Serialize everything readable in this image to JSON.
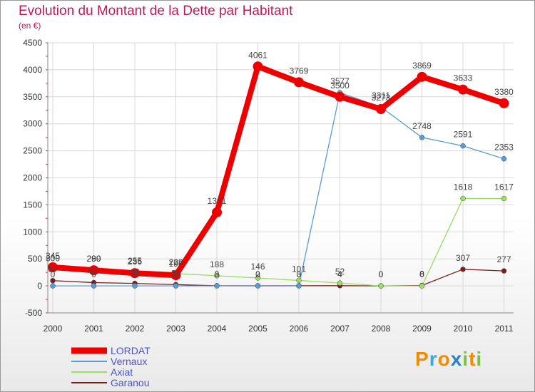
{
  "chart_data": {
    "type": "line",
    "title": "Evolution du Montant de la Dette par Habitant",
    "subtitle": "(en €)",
    "xlabel": "",
    "ylabel": "",
    "ylim": [
      -500,
      4500
    ],
    "y_ticks": [
      "-500",
      "0",
      "500",
      "1000",
      "1500",
      "2000",
      "2500",
      "3000",
      "3500",
      "4000",
      "4500"
    ],
    "categories": [
      "2000",
      "2001",
      "2002",
      "2003",
      "2004",
      "2005",
      "2006",
      "2007",
      "2008",
      "2009",
      "2010",
      "2011"
    ],
    "series": [
      {
        "name": "LORDAT",
        "color": "#ee0000",
        "values": [
          345,
          289,
          236,
          198,
          1361,
          4061,
          3769,
          3500,
          3273,
          3869,
          3633,
          3380
        ],
        "labels": [
          "345",
          "289",
          "236",
          "198",
          "1361",
          "4061",
          "3769",
          "3500",
          "3273",
          "3869",
          "3633",
          "3380"
        ]
      },
      {
        "name": "Vernaux",
        "color": "#5b9bd5",
        "values": [
          0,
          0,
          0,
          0,
          0,
          0,
          0,
          3577,
          3311,
          2748,
          2591,
          2353
        ],
        "labels": [
          "0",
          "0",
          "0",
          "0",
          "0",
          "0",
          "0",
          "3577",
          "3311",
          "2748",
          "2591",
          "2353"
        ]
      },
      {
        "name": "Axiat",
        "color": "#99dd66",
        "values": [
          300,
          290,
          255,
          228,
          188,
          146,
          101,
          52,
          0,
          0,
          1618,
          1617
        ],
        "labels": [
          "300",
          "290",
          "255",
          "228",
          "188",
          "146",
          "101",
          "52",
          "0",
          "0",
          "1618",
          "1617"
        ]
      },
      {
        "name": "Garanou",
        "color": "#7a1f1f",
        "values": [
          97,
          61,
          46,
          23,
          3,
          2,
          3,
          4,
          0,
          8,
          307,
          277
        ],
        "labels": [
          "97",
          "61",
          "46",
          "23",
          "3",
          "2",
          "3",
          "4",
          "0",
          "8",
          "307",
          "277"
        ]
      }
    ]
  },
  "legend": [
    {
      "name": "LORDAT",
      "color": "#ee0000"
    },
    {
      "name": "Vernaux",
      "color": "#5b9bd5"
    },
    {
      "name": "Axiat",
      "color": "#99dd66"
    },
    {
      "name": "Garanou",
      "color": "#7a1f1f"
    }
  ],
  "logo": {
    "text": "Proxiti",
    "letters": [
      "P",
      "r",
      "o",
      "x",
      "i",
      "t",
      "i"
    ],
    "colors": [
      "#f08c00",
      "#3ea6d8",
      "#f08c00",
      "#2a7fc9",
      "#7ac043",
      "#f08c00",
      "#7ac043"
    ]
  }
}
